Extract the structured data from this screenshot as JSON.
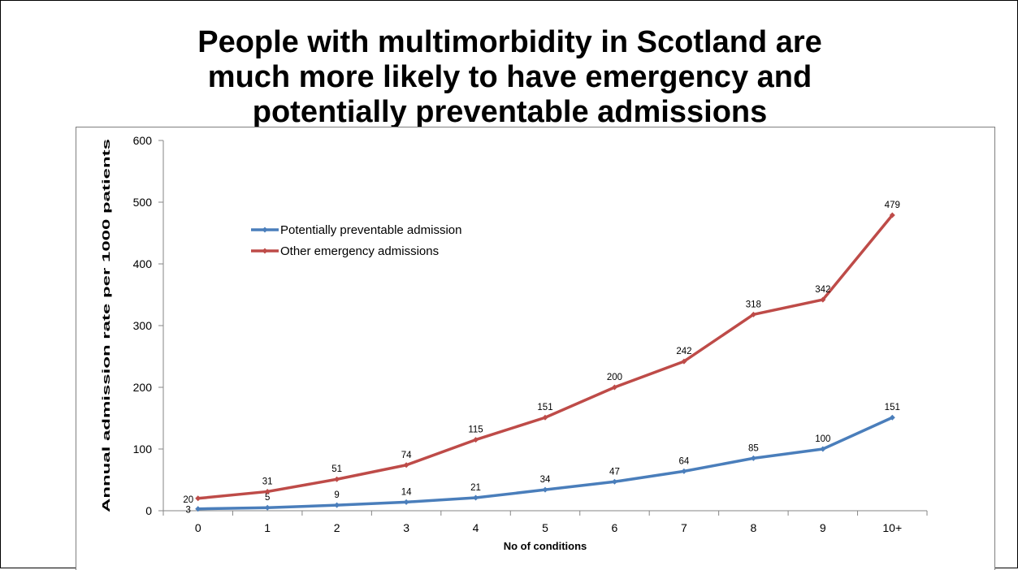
{
  "title_lines": [
    "People with multimorbidity in Scotland are",
    "much more likely to have emergency and",
    "potentially preventable admissions"
  ],
  "chart_data": {
    "type": "line",
    "title": "People with multimorbidity in Scotland are much more likely to have emergency and potentially preventable admissions",
    "xlabel": "No of conditions",
    "ylabel": "Annual admission rate per 1000 patients",
    "categories": [
      "0",
      "1",
      "2",
      "3",
      "4",
      "5",
      "6",
      "7",
      "8",
      "9",
      "10+"
    ],
    "ylim": [
      0,
      600
    ],
    "yticks": [
      0,
      100,
      200,
      300,
      400,
      500,
      600
    ],
    "grid": false,
    "legend_position": "top-left",
    "series": [
      {
        "name": "Potentially preventable admission",
        "color": "#4a7ebb",
        "values": [
          3,
          5,
          9,
          14,
          21,
          34,
          47,
          64,
          85,
          100,
          151
        ]
      },
      {
        "name": "Other emergency admissions",
        "color": "#be4b48",
        "values": [
          20,
          31,
          51,
          74,
          115,
          151,
          200,
          242,
          318,
          342,
          479
        ]
      }
    ]
  }
}
